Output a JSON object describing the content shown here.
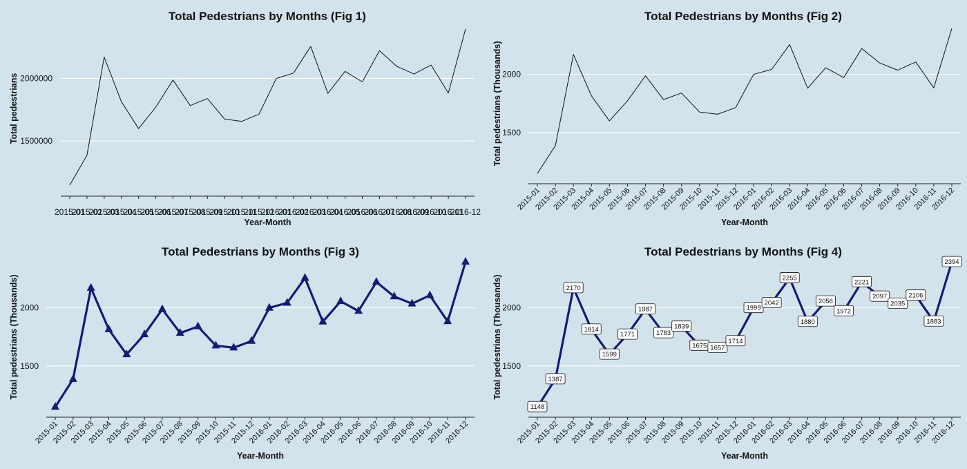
{
  "chart_data": [
    {
      "type": "line",
      "title": "Total Pedestrians by Months (Fig 1)",
      "xlabel": "Year-Month",
      "ylabel": "Total pedestrians",
      "categories": [
        "2015-01",
        "2015-02",
        "2015-03",
        "2015-04",
        "2015-05",
        "2015-06",
        "2015-07",
        "2015-08",
        "2015-09",
        "2015-10",
        "2015-11",
        "2015-12",
        "2016-01",
        "2016-02",
        "2016-03",
        "2016-04",
        "2016-05",
        "2016-06",
        "2016-07",
        "2016-08",
        "2016-09",
        "2016-10",
        "2016-11",
        "2016-12"
      ],
      "x_tick_rotation": 0,
      "yticks": [
        1500000,
        2000000
      ],
      "ylim": [
        1060000,
        2460000
      ],
      "grid": true,
      "series": [
        {
          "values": [
            1148000,
            1387000,
            2170000,
            1814000,
            1599000,
            1771000,
            1987000,
            1783000,
            1839000,
            1675000,
            1657000,
            1714000,
            1999000,
            2042000,
            2255000,
            1880000,
            2056000,
            1972000,
            2221000,
            2097000,
            2035000,
            2106000,
            1883000,
            2394000
          ]
        }
      ],
      "line_color": "#111111",
      "markers": false,
      "data_labels": false
    },
    {
      "type": "line",
      "title": "Total Pedestrians by Months (Fig 2)",
      "xlabel": "Year-Month",
      "ylabel": "Total pedestrians (Thousands)",
      "categories": [
        "2015-01",
        "2015-02",
        "2015-03",
        "2015-04",
        "2015-05",
        "2015-06",
        "2015-07",
        "2015-08",
        "2015-09",
        "2015-10",
        "2015-11",
        "2015-12",
        "2016-01",
        "2016-02",
        "2016-03",
        "2016-04",
        "2016-05",
        "2016-06",
        "2016-07",
        "2016-08",
        "2016-09",
        "2016-10",
        "2016-11",
        "2016-12"
      ],
      "x_tick_rotation": -45,
      "yticks": [
        1500,
        2000
      ],
      "ylim": [
        1060,
        2460
      ],
      "grid": true,
      "series": [
        {
          "values": [
            1148,
            1387,
            2170,
            1814,
            1599,
            1771,
            1987,
            1783,
            1839,
            1675,
            1657,
            1714,
            1999,
            2042,
            2255,
            1880,
            2056,
            1972,
            2221,
            2097,
            2035,
            2106,
            1883,
            2394
          ]
        }
      ],
      "line_color": "#111111",
      "markers": false,
      "data_labels": false
    },
    {
      "type": "line",
      "title": "Total Pedestrians by Months (Fig 3)",
      "xlabel": "Year-Month",
      "ylabel": "Total pedestrians (Thousands)",
      "categories": [
        "2015-01",
        "2015-02",
        "2015-03",
        "2015-04",
        "2015-05",
        "2015-06",
        "2015-07",
        "2015-08",
        "2015-09",
        "2015-10",
        "2015-11",
        "2015-12",
        "2016-01",
        "2016-02",
        "2016-03",
        "2016-04",
        "2016-05",
        "2016-06",
        "2016-07",
        "2016-08",
        "2016-09",
        "2016-10",
        "2016-11",
        "2016-12"
      ],
      "x_tick_rotation": -45,
      "yticks": [
        1500,
        2000
      ],
      "ylim": [
        1060,
        2460
      ],
      "grid": true,
      "series": [
        {
          "values": [
            1148,
            1387,
            2170,
            1814,
            1599,
            1771,
            1987,
            1783,
            1839,
            1675,
            1657,
            1714,
            1999,
            2042,
            2255,
            1880,
            2056,
            1972,
            2221,
            2097,
            2035,
            2106,
            1883,
            2394
          ]
        }
      ],
      "line_color": "#141a78",
      "markers": true,
      "marker": "triangle",
      "data_labels": false
    },
    {
      "type": "line",
      "title": "Total Pedestrians by Months (Fig 4)",
      "xlabel": "Year-Month",
      "ylabel": "Total pedestrians (Thousands)",
      "categories": [
        "2015-01",
        "2015-02",
        "2015-03",
        "2015-04",
        "2015-05",
        "2015-06",
        "2015-07",
        "2015-08",
        "2015-09",
        "2015-10",
        "2015-11",
        "2015-12",
        "2016-01",
        "2016-02",
        "2016-03",
        "2016-04",
        "2016-05",
        "2016-06",
        "2016-07",
        "2016-08",
        "2016-09",
        "2016-10",
        "2016-11",
        "2016-12"
      ],
      "x_tick_rotation": -45,
      "yticks": [
        1500,
        2000
      ],
      "ylim": [
        1060,
        2460
      ],
      "grid": true,
      "series": [
        {
          "values": [
            1148,
            1387,
            2170,
            1814,
            1599,
            1771,
            1987,
            1783,
            1839,
            1675,
            1657,
            1714,
            1999,
            2042,
            2255,
            1880,
            2056,
            1972,
            2221,
            2097,
            2035,
            2106,
            1883,
            2394
          ]
        }
      ],
      "line_color": "#141a78",
      "markers": false,
      "data_labels": true
    }
  ],
  "colors": {
    "background": "#d3e3ec",
    "gridline": "#ffffff",
    "axis": "#222222"
  }
}
